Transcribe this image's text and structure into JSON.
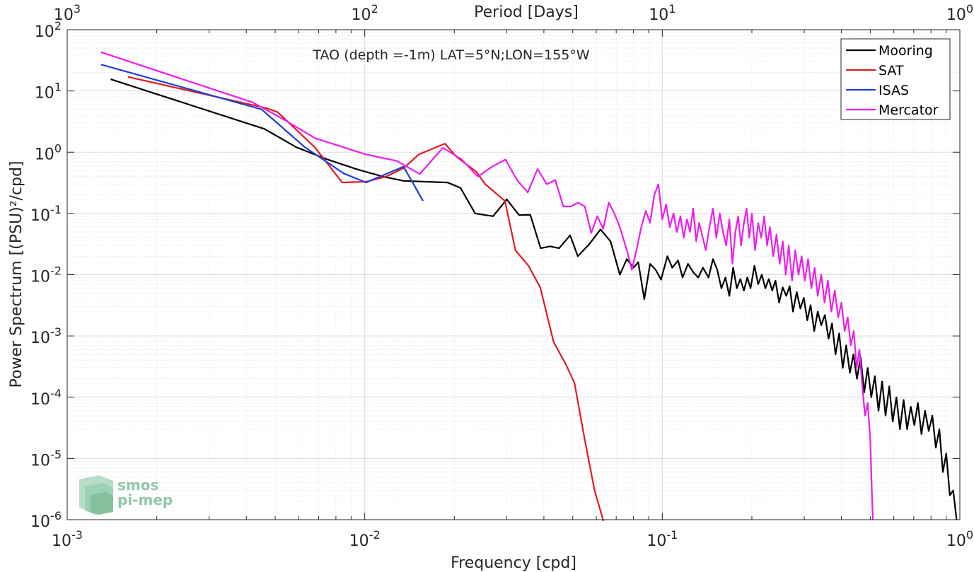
{
  "chart_data": {
    "type": "line",
    "title": "TAO (depth =-1m) LAT=5°N;LON=155°W",
    "xlabel": "Frequency [cpd]",
    "ylabel": "Power Spectrum [(PSU)²/cpd]",
    "top_xlabel": "Period [Days]",
    "x_scale": "log",
    "y_scale": "log",
    "xlim": [
      0.001,
      1
    ],
    "ylim": [
      1e-06,
      100
    ],
    "x_tick_labels": [
      {
        "base": "10",
        "exp": "-3"
      },
      {
        "base": "10",
        "exp": "-2"
      },
      {
        "base": "10",
        "exp": "-1"
      },
      {
        "base": "10",
        "exp": "0"
      }
    ],
    "top_tick_labels": [
      {
        "base": "10",
        "exp": "3"
      },
      {
        "base": "10",
        "exp": "2"
      },
      {
        "base": "10",
        "exp": "1"
      },
      {
        "base": "10",
        "exp": "0"
      }
    ],
    "y_tick_labels": [
      {
        "base": "10",
        "exp": "2"
      },
      {
        "base": "10",
        "exp": "1"
      },
      {
        "base": "10",
        "exp": "0"
      },
      {
        "base": "10",
        "exp": "-1"
      },
      {
        "base": "10",
        "exp": "-2"
      },
      {
        "base": "10",
        "exp": "-3"
      },
      {
        "base": "10",
        "exp": "-4"
      },
      {
        "base": "10",
        "exp": "-5"
      },
      {
        "base": "10",
        "exp": "-6"
      }
    ],
    "grid": true,
    "legend_position": "top-right",
    "series": [
      {
        "name": "Mooring",
        "color": "#000000",
        "points": [
          [
            0.0014,
            15.5
          ],
          [
            0.0046,
            2.4
          ],
          [
            0.0059,
            1.2
          ],
          [
            0.0075,
            0.76
          ],
          [
            0.0095,
            0.52
          ],
          [
            0.0115,
            0.4
          ],
          [
            0.0135,
            0.34
          ],
          [
            0.016,
            0.33
          ],
          [
            0.019,
            0.32
          ],
          [
            0.021,
            0.26
          ],
          [
            0.0235,
            0.1
          ],
          [
            0.027,
            0.09
          ],
          [
            0.03,
            0.17
          ],
          [
            0.033,
            0.094
          ],
          [
            0.036,
            0.095
          ],
          [
            0.039,
            0.027
          ],
          [
            0.042,
            0.029
          ],
          [
            0.045,
            0.027
          ],
          [
            0.049,
            0.044
          ],
          [
            0.052,
            0.02
          ],
          [
            0.057,
            0.032
          ],
          [
            0.062,
            0.055
          ],
          [
            0.067,
            0.035
          ],
          [
            0.072,
            0.01
          ],
          [
            0.076,
            0.018
          ],
          [
            0.08,
            0.013
          ],
          [
            0.083,
            0.016
          ],
          [
            0.087,
            0.004
          ],
          [
            0.091,
            0.015
          ],
          [
            0.095,
            0.012
          ],
          [
            0.099,
            0.0083
          ],
          [
            0.104,
            0.02
          ],
          [
            0.108,
            0.013
          ],
          [
            0.113,
            0.017
          ],
          [
            0.117,
            0.009
          ],
          [
            0.122,
            0.015
          ],
          [
            0.127,
            0.011
          ],
          [
            0.132,
            0.009
          ],
          [
            0.137,
            0.013
          ],
          [
            0.143,
            0.009
          ],
          [
            0.148,
            0.018
          ],
          [
            0.153,
            0.012
          ],
          [
            0.158,
            0.006
          ],
          [
            0.163,
            0.009
          ],
          [
            0.168,
            0.0045
          ],
          [
            0.173,
            0.013
          ],
          [
            0.178,
            0.006
          ],
          [
            0.183,
            0.0085
          ],
          [
            0.188,
            0.0055
          ],
          [
            0.193,
            0.009
          ],
          [
            0.198,
            0.006
          ],
          [
            0.204,
            0.014
          ],
          [
            0.21,
            0.007
          ],
          [
            0.216,
            0.01
          ],
          [
            0.222,
            0.006
          ],
          [
            0.228,
            0.0085
          ],
          [
            0.234,
            0.0055
          ],
          [
            0.24,
            0.008
          ],
          [
            0.247,
            0.0035
          ],
          [
            0.254,
            0.0062
          ],
          [
            0.261,
            0.0045
          ],
          [
            0.268,
            0.0065
          ],
          [
            0.275,
            0.0025
          ],
          [
            0.283,
            0.0052
          ],
          [
            0.291,
            0.0028
          ],
          [
            0.299,
            0.0042
          ],
          [
            0.307,
            0.0018
          ],
          [
            0.315,
            0.0032
          ],
          [
            0.324,
            0.0012
          ],
          [
            0.333,
            0.0025
          ],
          [
            0.342,
            0.0015
          ],
          [
            0.352,
            0.0022
          ],
          [
            0.362,
            0.0009
          ],
          [
            0.372,
            0.0016
          ],
          [
            0.382,
            0.0005
          ],
          [
            0.393,
            0.0011
          ],
          [
            0.404,
            0.0003
          ],
          [
            0.415,
            0.0007
          ],
          [
            0.427,
            0.00025
          ],
          [
            0.439,
            0.0005
          ],
          [
            0.451,
            0.0002
          ],
          [
            0.464,
            0.00045
          ],
          [
            0.477,
            0.00012
          ],
          [
            0.49,
            0.0003
          ],
          [
            0.504,
            0.0001
          ],
          [
            0.518,
            0.00022
          ],
          [
            0.533,
            6e-05
          ],
          [
            0.548,
            0.00018
          ],
          [
            0.563,
            5e-05
          ],
          [
            0.579,
            0.00015
          ],
          [
            0.595,
            4e-05
          ],
          [
            0.612,
            0.0001
          ],
          [
            0.629,
            3e-05
          ],
          [
            0.647,
            9e-05
          ],
          [
            0.665,
            3e-05
          ],
          [
            0.684,
            7e-05
          ],
          [
            0.703,
            3.5e-05
          ],
          [
            0.723,
            8e-05
          ],
          [
            0.743,
            2.5e-05
          ],
          [
            0.764,
            6e-05
          ],
          [
            0.786,
            2.8e-05
          ],
          [
            0.808,
            5e-05
          ],
          [
            0.83,
            1.5e-05
          ],
          [
            0.853,
            3e-05
          ],
          [
            0.877,
            6e-06
          ],
          [
            0.9,
            1.2e-05
          ],
          [
            0.925,
            2.5e-06
          ],
          [
            0.95,
            3e-06
          ],
          [
            0.975,
            1e-06
          ]
        ]
      },
      {
        "name": "SAT",
        "color": "#e41a1c",
        "points": [
          [
            0.0016,
            17
          ],
          [
            0.0047,
            5.2
          ],
          [
            0.0051,
            4.5
          ],
          [
            0.0068,
            1.2
          ],
          [
            0.0084,
            0.32
          ],
          [
            0.0101,
            0.33
          ],
          [
            0.0118,
            0.4
          ],
          [
            0.0135,
            0.55
          ],
          [
            0.0152,
            0.92
          ],
          [
            0.0186,
            1.38
          ],
          [
            0.0203,
            0.85
          ],
          [
            0.0237,
            0.48
          ],
          [
            0.0254,
            0.3
          ],
          [
            0.0296,
            0.16
          ],
          [
            0.0321,
            0.025
          ],
          [
            0.0355,
            0.014
          ],
          [
            0.0389,
            0.0062
          ],
          [
            0.0431,
            0.0008
          ],
          [
            0.0473,
            0.00035
          ],
          [
            0.0507,
            0.00017
          ],
          [
            0.0549,
            2e-05
          ],
          [
            0.0592,
            3e-06
          ],
          [
            0.0634,
            9.5e-07
          ]
        ]
      },
      {
        "name": "ISAS",
        "color": "#1f3fd6",
        "points": [
          [
            0.0013,
            27
          ],
          [
            0.0045,
            5.0
          ],
          [
            0.0063,
            1.2
          ],
          [
            0.0085,
            0.45
          ],
          [
            0.0101,
            0.32
          ],
          [
            0.0135,
            0.58
          ],
          [
            0.0157,
            0.16
          ]
        ]
      },
      {
        "name": "Mercator",
        "color": "#ee1cee",
        "points": [
          [
            0.0013,
            43
          ],
          [
            0.0042,
            6.5
          ],
          [
            0.0053,
            3.5
          ],
          [
            0.0068,
            1.7
          ],
          [
            0.01,
            0.93
          ],
          [
            0.0128,
            0.72
          ],
          [
            0.0153,
            0.44
          ],
          [
            0.0183,
            1.18
          ],
          [
            0.0212,
            0.76
          ],
          [
            0.024,
            0.4
          ],
          [
            0.0268,
            0.58
          ],
          [
            0.0297,
            0.76
          ],
          [
            0.0325,
            0.35
          ],
          [
            0.0353,
            0.22
          ],
          [
            0.0381,
            0.53
          ],
          [
            0.0409,
            0.3
          ],
          [
            0.0437,
            0.35
          ],
          [
            0.0465,
            0.13
          ],
          [
            0.0493,
            0.13
          ],
          [
            0.0521,
            0.15
          ],
          [
            0.0549,
            0.13
          ],
          [
            0.0577,
            0.048
          ],
          [
            0.0605,
            0.09
          ],
          [
            0.0633,
            0.056
          ],
          [
            0.0661,
            0.15
          ],
          [
            0.069,
            0.1
          ],
          [
            0.072,
            0.06
          ],
          [
            0.076,
            0.025
          ],
          [
            0.079,
            0.012
          ],
          [
            0.082,
            0.026
          ],
          [
            0.085,
            0.06
          ],
          [
            0.088,
            0.11
          ],
          [
            0.091,
            0.07
          ],
          [
            0.094,
            0.2
          ],
          [
            0.097,
            0.3
          ],
          [
            0.1,
            0.08
          ],
          [
            0.103,
            0.14
          ],
          [
            0.106,
            0.06
          ],
          [
            0.109,
            0.1
          ],
          [
            0.112,
            0.05
          ],
          [
            0.115,
            0.09
          ],
          [
            0.118,
            0.04
          ],
          [
            0.121,
            0.08
          ],
          [
            0.124,
            0.05
          ],
          [
            0.127,
            0.12
          ],
          [
            0.13,
            0.035
          ],
          [
            0.133,
            0.07
          ],
          [
            0.136,
            0.045
          ],
          [
            0.14,
            0.025
          ],
          [
            0.144,
            0.06
          ],
          [
            0.148,
            0.12
          ],
          [
            0.152,
            0.04
          ],
          [
            0.156,
            0.1
          ],
          [
            0.16,
            0.05
          ],
          [
            0.164,
            0.03
          ],
          [
            0.168,
            0.08
          ],
          [
            0.172,
            0.015
          ],
          [
            0.176,
            0.05
          ],
          [
            0.18,
            0.09
          ],
          [
            0.184,
            0.03
          ],
          [
            0.188,
            0.07
          ],
          [
            0.192,
            0.12
          ],
          [
            0.196,
            0.04
          ],
          [
            0.2,
            0.1
          ],
          [
            0.205,
            0.025
          ],
          [
            0.21,
            0.07
          ],
          [
            0.215,
            0.04
          ],
          [
            0.22,
            0.09
          ],
          [
            0.225,
            0.03
          ],
          [
            0.23,
            0.06
          ],
          [
            0.236,
            0.02
          ],
          [
            0.242,
            0.045
          ],
          [
            0.248,
            0.015
          ],
          [
            0.254,
            0.035
          ],
          [
            0.26,
            0.01
          ],
          [
            0.266,
            0.03
          ],
          [
            0.273,
            0.008
          ],
          [
            0.28,
            0.025
          ],
          [
            0.287,
            0.01
          ],
          [
            0.294,
            0.02
          ],
          [
            0.301,
            0.008
          ],
          [
            0.309,
            0.018
          ],
          [
            0.317,
            0.006
          ],
          [
            0.325,
            0.013
          ],
          [
            0.333,
            0.0045
          ],
          [
            0.342,
            0.01
          ],
          [
            0.351,
            0.0035
          ],
          [
            0.36,
            0.008
          ],
          [
            0.37,
            0.0025
          ],
          [
            0.38,
            0.0055
          ],
          [
            0.39,
            0.002
          ],
          [
            0.4,
            0.0035
          ],
          [
            0.41,
            0.0012
          ],
          [
            0.42,
            0.002
          ],
          [
            0.43,
            0.0007
          ],
          [
            0.44,
            0.0012
          ],
          [
            0.45,
            0.0003
          ],
          [
            0.46,
            0.0006
          ],
          [
            0.47,
            0.00015
          ],
          [
            0.48,
            5e-05
          ],
          [
            0.49,
            8e-05
          ],
          [
            0.5,
            2e-05
          ],
          [
            0.505,
            4e-06
          ],
          [
            0.51,
            1e-06
          ]
        ]
      }
    ]
  },
  "watermark": {
    "line1": "smos",
    "line2": "pi-mep",
    "color": "#7fbf9a"
  }
}
